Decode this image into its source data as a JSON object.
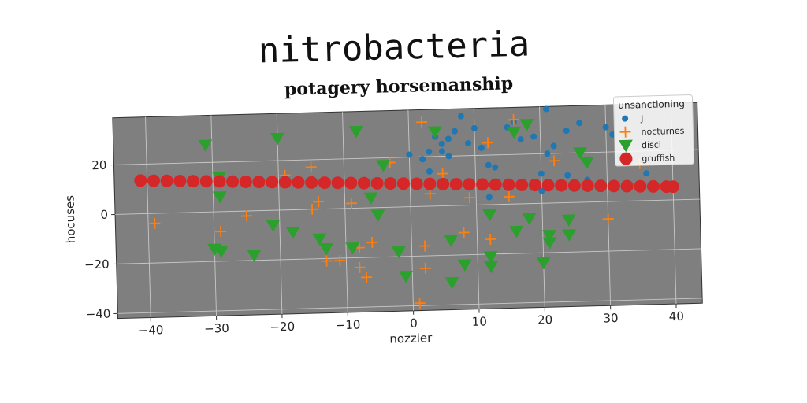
{
  "page": {
    "suptitle": "nitrobacteria"
  },
  "chart_data": {
    "type": "scatter",
    "title": "potagery horsemanship",
    "xlabel": "nozzler",
    "ylabel": "hocuses",
    "xlim": [
      -45,
      44
    ],
    "ylim": [
      -42,
      39
    ],
    "xticks": [
      -40,
      -30,
      -20,
      -10,
      0,
      10,
      20,
      30,
      40
    ],
    "yticks": [
      -40,
      -20,
      0,
      20
    ],
    "grid": true,
    "legend": {
      "title": "unsanctioning",
      "position": "top-right"
    },
    "colors": {
      "plot_bg": "#7f7f7f",
      "grid": "#c8c8c8"
    },
    "series": [
      {
        "name": "J",
        "marker": "circle-small",
        "color": "#1f77b4",
        "points": [
          [
            0,
            21
          ],
          [
            2,
            19
          ],
          [
            3,
            22
          ],
          [
            4,
            28
          ],
          [
            5,
            25
          ],
          [
            5,
            22
          ],
          [
            6,
            27
          ],
          [
            6,
            20
          ],
          [
            7,
            30
          ],
          [
            8,
            36
          ],
          [
            9,
            25
          ],
          [
            10,
            31
          ],
          [
            11,
            23
          ],
          [
            12,
            16
          ],
          [
            13,
            15
          ],
          [
            12,
            3
          ],
          [
            15,
            31
          ],
          [
            16,
            33
          ],
          [
            17,
            26
          ],
          [
            18,
            32
          ],
          [
            19,
            27
          ],
          [
            21,
            38
          ],
          [
            21,
            20
          ],
          [
            22,
            23
          ],
          [
            24,
            29
          ],
          [
            26,
            32
          ],
          [
            27,
            9
          ],
          [
            30,
            30
          ],
          [
            31,
            27
          ],
          [
            32,
            18
          ],
          [
            33,
            22
          ],
          [
            35,
            15
          ],
          [
            36,
            11
          ],
          [
            3,
            14
          ],
          [
            20,
            12
          ],
          [
            20,
            5
          ],
          [
            24,
            11
          ]
        ]
      },
      {
        "name": "nocturnes",
        "marker": "plus",
        "color": "#ff7f0e",
        "points": [
          [
            -39,
            -4
          ],
          [
            -29,
            -8
          ],
          [
            -25,
            -2
          ],
          [
            -19,
            14
          ],
          [
            -15,
            17
          ],
          [
            -15,
            0
          ],
          [
            -14,
            3
          ],
          [
            -13,
            -21
          ],
          [
            -11,
            -21
          ],
          [
            -9,
            2
          ],
          [
            -8,
            -24
          ],
          [
            -8,
            -16
          ],
          [
            -7,
            -28
          ],
          [
            -6,
            -14
          ],
          [
            -3,
            18
          ],
          [
            2,
            34
          ],
          [
            2,
            -16
          ],
          [
            2,
            -25
          ],
          [
            3,
            5
          ],
          [
            5,
            13
          ],
          [
            1,
            -39
          ],
          [
            8,
            -11
          ],
          [
            9,
            3
          ],
          [
            12,
            25
          ],
          [
            12,
            -14
          ],
          [
            15,
            3
          ],
          [
            16,
            34
          ],
          [
            22,
            17
          ],
          [
            30,
            -7
          ],
          [
            35,
            15
          ]
        ]
      },
      {
        "name": "disci",
        "marker": "triangle-down",
        "color": "#2ca02c",
        "points": [
          [
            -31,
            27
          ],
          [
            -29,
            14
          ],
          [
            -30,
            -15
          ],
          [
            -29,
            -16
          ],
          [
            -29,
            6
          ],
          [
            -24,
            -18
          ],
          [
            -21,
            -6
          ],
          [
            -20,
            29
          ],
          [
            -18,
            -9
          ],
          [
            -14,
            -12
          ],
          [
            -13,
            -16
          ],
          [
            -9,
            -16
          ],
          [
            -8,
            31
          ],
          [
            -6,
            4
          ],
          [
            -5,
            -3
          ],
          [
            -4,
            17
          ],
          [
            -2,
            -18
          ],
          [
            -1,
            -28
          ],
          [
            4,
            30
          ],
          [
            6,
            -14
          ],
          [
            6,
            -31
          ],
          [
            8,
            -24
          ],
          [
            12,
            -4
          ],
          [
            12,
            -21
          ],
          [
            12,
            -25
          ],
          [
            16,
            -11
          ],
          [
            16,
            29
          ],
          [
            18,
            -6
          ],
          [
            18,
            32
          ],
          [
            20,
            -24
          ],
          [
            21,
            -13
          ],
          [
            21,
            -16
          ],
          [
            24,
            -7
          ],
          [
            24,
            -13
          ],
          [
            26,
            20
          ],
          [
            27,
            16
          ]
        ]
      },
      {
        "name": "gruffish",
        "marker": "circle-large",
        "color": "#d62728",
        "points": [
          [
            -41,
            13.4
          ],
          [
            -39,
            13.2
          ],
          [
            -37,
            13.0
          ],
          [
            -35,
            12.8
          ],
          [
            -33,
            12.6
          ],
          [
            -31,
            12.4
          ],
          [
            -29,
            12.2
          ],
          [
            -27,
            12.0
          ],
          [
            -25,
            11.8
          ],
          [
            -23,
            11.6
          ],
          [
            -21,
            11.4
          ],
          [
            -19,
            11.2
          ],
          [
            -17,
            11.0
          ],
          [
            -15,
            10.8
          ],
          [
            -13,
            10.6
          ],
          [
            -11,
            10.4
          ],
          [
            -9,
            10.2
          ],
          [
            -7,
            10.0
          ],
          [
            -5,
            9.8
          ],
          [
            -3,
            9.6
          ],
          [
            -1,
            9.4
          ],
          [
            1,
            9.2
          ],
          [
            3,
            9.0
          ],
          [
            5,
            8.8
          ],
          [
            7,
            8.6
          ],
          [
            9,
            8.4
          ],
          [
            11,
            8.2
          ],
          [
            13,
            8.0
          ],
          [
            15,
            7.8
          ],
          [
            17,
            7.6
          ],
          [
            19,
            7.4
          ],
          [
            21,
            7.2
          ],
          [
            23,
            7.0
          ],
          [
            25,
            6.8
          ],
          [
            27,
            6.6
          ],
          [
            29,
            6.4
          ],
          [
            31,
            6.2
          ],
          [
            33,
            6.0
          ],
          [
            35,
            5.8
          ],
          [
            37,
            5.6
          ],
          [
            39,
            5.4
          ],
          [
            40,
            5.3
          ]
        ]
      }
    ]
  }
}
